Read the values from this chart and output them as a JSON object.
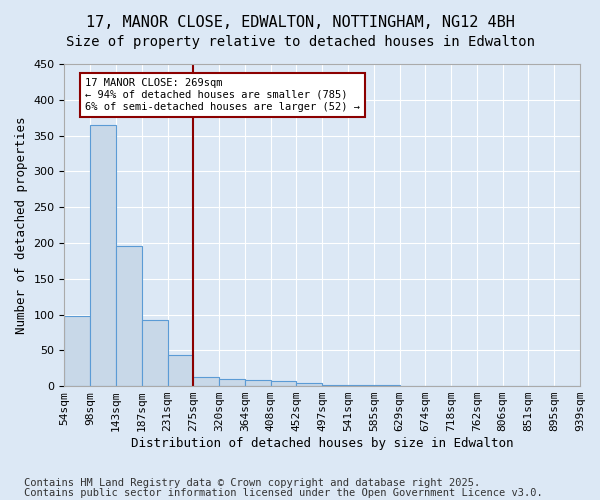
{
  "title_line1": "17, MANOR CLOSE, EDWALTON, NOTTINGHAM, NG12 4BH",
  "title_line2": "Size of property relative to detached houses in Edwalton",
  "xlabel": "Distribution of detached houses by size in Edwalton",
  "ylabel": "Number of detached properties",
  "bin_labels": [
    "54sqm",
    "98sqm",
    "143sqm",
    "187sqm",
    "231sqm",
    "275sqm",
    "320sqm",
    "364sqm",
    "408sqm",
    "452sqm",
    "497sqm",
    "541sqm",
    "585sqm",
    "629sqm",
    "674sqm",
    "718sqm",
    "762sqm",
    "806sqm",
    "851sqm",
    "895sqm",
    "939sqm"
  ],
  "values": [
    98,
    365,
    196,
    92,
    44,
    13,
    10,
    9,
    7,
    5,
    2,
    1,
    1,
    0,
    0,
    0,
    0,
    0,
    0,
    0
  ],
  "bar_color": "#c8d8e8",
  "bar_edge_color": "#5b9bd5",
  "vline_x": 4.5,
  "vline_color": "#8b0000",
  "annotation_text": "17 MANOR CLOSE: 269sqm\n← 94% of detached houses are smaller (785)\n6% of semi-detached houses are larger (52) →",
  "annotation_box_color": "#8b0000",
  "annotation_bg": "white",
  "ylim": [
    0,
    450
  ],
  "yticks": [
    0,
    50,
    100,
    150,
    200,
    250,
    300,
    350,
    400,
    450
  ],
  "footer_line1": "Contains HM Land Registry data © Crown copyright and database right 2025.",
  "footer_line2": "Contains public sector information licensed under the Open Government Licence v3.0.",
  "bg_color": "#dce8f5",
  "plot_bg_color": "#dce8f5",
  "grid_color": "white",
  "title_fontsize": 11,
  "subtitle_fontsize": 10,
  "axis_label_fontsize": 9,
  "tick_fontsize": 8,
  "footer_fontsize": 7.5
}
